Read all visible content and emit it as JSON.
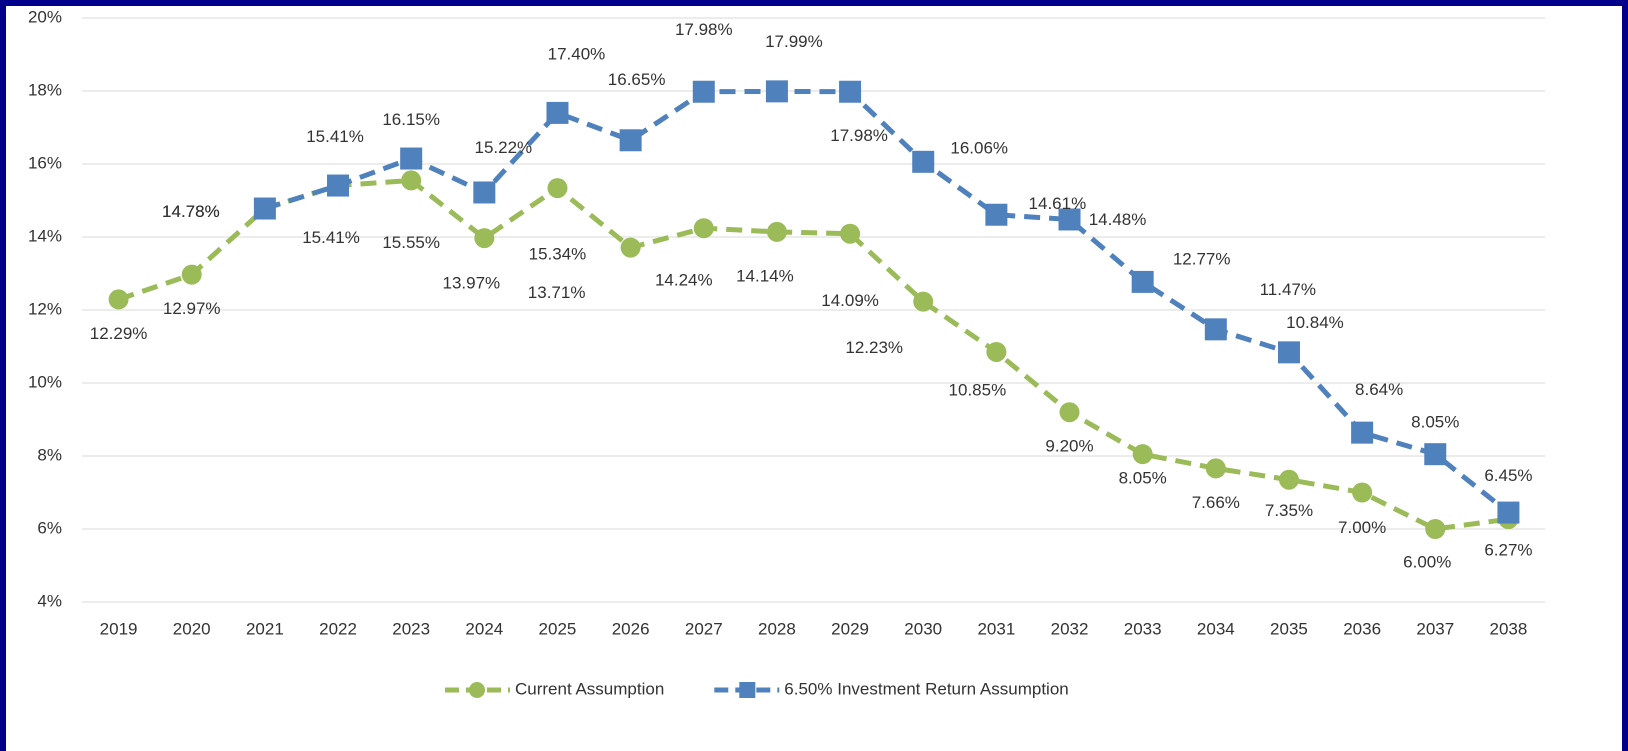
{
  "chart_data": {
    "type": "line",
    "categories": [
      "2019",
      "2020",
      "2021",
      "2022",
      "2023",
      "2024",
      "2025",
      "2026",
      "2027",
      "2028",
      "2029",
      "2030",
      "2031",
      "2032",
      "2033",
      "2034",
      "2035",
      "2036",
      "2037",
      "2038"
    ],
    "series": [
      {
        "name": "Current Assumption",
        "color": "#9bbb59",
        "marker": "circle",
        "values": [
          12.29,
          12.97,
          14.78,
          15.41,
          15.55,
          13.97,
          15.34,
          13.71,
          14.24,
          14.14,
          14.09,
          12.23,
          10.85,
          9.2,
          8.05,
          7.66,
          7.35,
          7.0,
          6.0,
          6.27
        ],
        "value_labels": [
          "12.29%",
          "12.97%",
          "14.78%",
          "15.41%",
          "15.55%",
          "13.97%",
          "15.34%",
          "13.71%",
          "14.24%",
          "14.14%",
          "14.09%",
          "12.23%",
          "10.85%",
          "9.20%",
          "8.05%",
          "7.66%",
          "7.35%",
          "7.00%",
          "6.00%",
          "6.27%"
        ]
      },
      {
        "name": "6.50% Investment Return Assumption",
        "color": "#4f81bd",
        "marker": "square",
        "values": [
          null,
          null,
          14.78,
          15.41,
          16.15,
          15.22,
          17.4,
          16.65,
          17.98,
          17.99,
          17.98,
          16.06,
          14.61,
          14.48,
          12.77,
          11.47,
          10.84,
          8.64,
          8.05,
          6.45
        ],
        "value_labels": [
          null,
          null,
          "14.78%",
          "15.41%",
          "16.15%",
          "15.22%",
          "17.40%",
          "16.65%",
          "17.98%",
          "17.99%",
          "17.98%",
          "16.06%",
          "14.61%",
          "14.48%",
          "12.77%",
          "11.47%",
          "10.84%",
          "8.64%",
          "8.05%",
          "6.45%"
        ]
      }
    ],
    "ylim": [
      4,
      20
    ],
    "yticks": [
      {
        "value": 4,
        "label": "4%"
      },
      {
        "value": 6,
        "label": "6%"
      },
      {
        "value": 8,
        "label": "8%"
      },
      {
        "value": 10,
        "label": "10%"
      },
      {
        "value": 12,
        "label": "12%"
      },
      {
        "value": 14,
        "label": "14%"
      },
      {
        "value": 16,
        "label": "16%"
      },
      {
        "value": 18,
        "label": "18%"
      },
      {
        "value": 20,
        "label": "20%"
      }
    ],
    "grid": true,
    "legend": "bottom"
  }
}
